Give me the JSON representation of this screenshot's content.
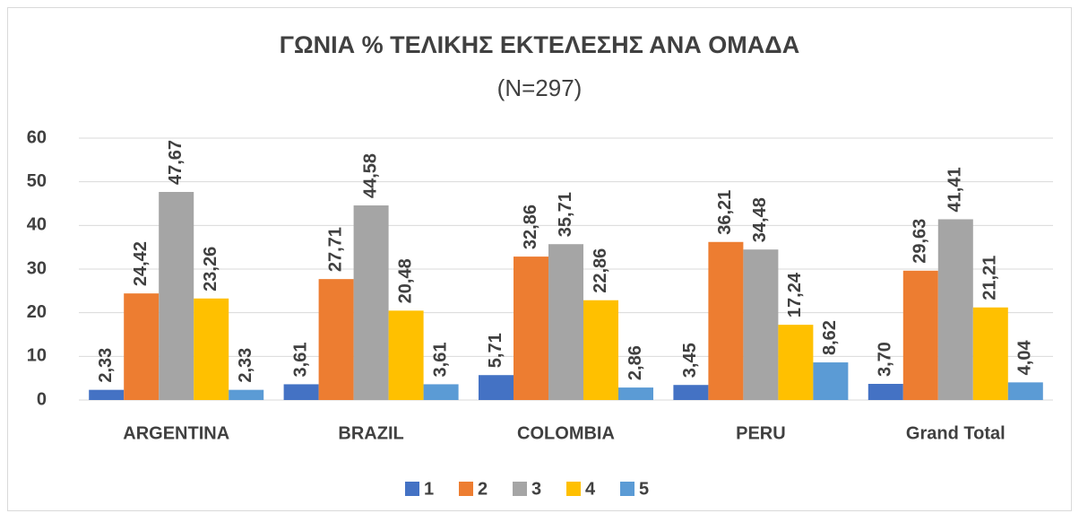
{
  "chart_data": {
    "type": "bar",
    "title": "ΓΩΝΙΑ % ΤΕΛΙΚΗΣ ΕΚΤΕΛΕΣΗΣ ΑΝΑ ΟΜΑΔΑ",
    "subtitle": "(N=297)",
    "categories": [
      "ARGENTINA",
      "BRAZIL",
      "COLOMBIA",
      "PERU",
      "Grand Total"
    ],
    "series": [
      {
        "name": "1",
        "color": "#4472c4",
        "values": [
          2.33,
          3.61,
          5.71,
          3.45,
          3.7
        ],
        "value_labels": [
          "2,33",
          "3,61",
          "5,71",
          "3,45",
          "3,70"
        ]
      },
      {
        "name": "2",
        "color": "#ed7d31",
        "values": [
          24.42,
          27.71,
          32.86,
          36.21,
          29.63
        ],
        "value_labels": [
          "24,42",
          "27,71",
          "32,86",
          "36,21",
          "29,63"
        ]
      },
      {
        "name": "3",
        "color": "#a5a5a5",
        "values": [
          47.67,
          44.58,
          35.71,
          34.48,
          41.41
        ],
        "value_labels": [
          "47,67",
          "44,58",
          "35,71",
          "34,48",
          "41,41"
        ]
      },
      {
        "name": "4",
        "color": "#ffc000",
        "values": [
          23.26,
          20.48,
          22.86,
          17.24,
          21.21
        ],
        "value_labels": [
          "23,26",
          "20,48",
          "22,86",
          "17,24",
          "21,21"
        ]
      },
      {
        "name": "5",
        "color": "#5b9bd5",
        "values": [
          2.33,
          3.61,
          2.86,
          8.62,
          4.04
        ],
        "value_labels": [
          "2,33",
          "3,61",
          "2,86",
          "8,62",
          "4,04"
        ]
      }
    ],
    "ylim": [
      0,
      60
    ],
    "yticks": [
      0,
      10,
      20,
      30,
      40,
      50,
      60
    ],
    "grid": true,
    "legend": "bottom"
  }
}
